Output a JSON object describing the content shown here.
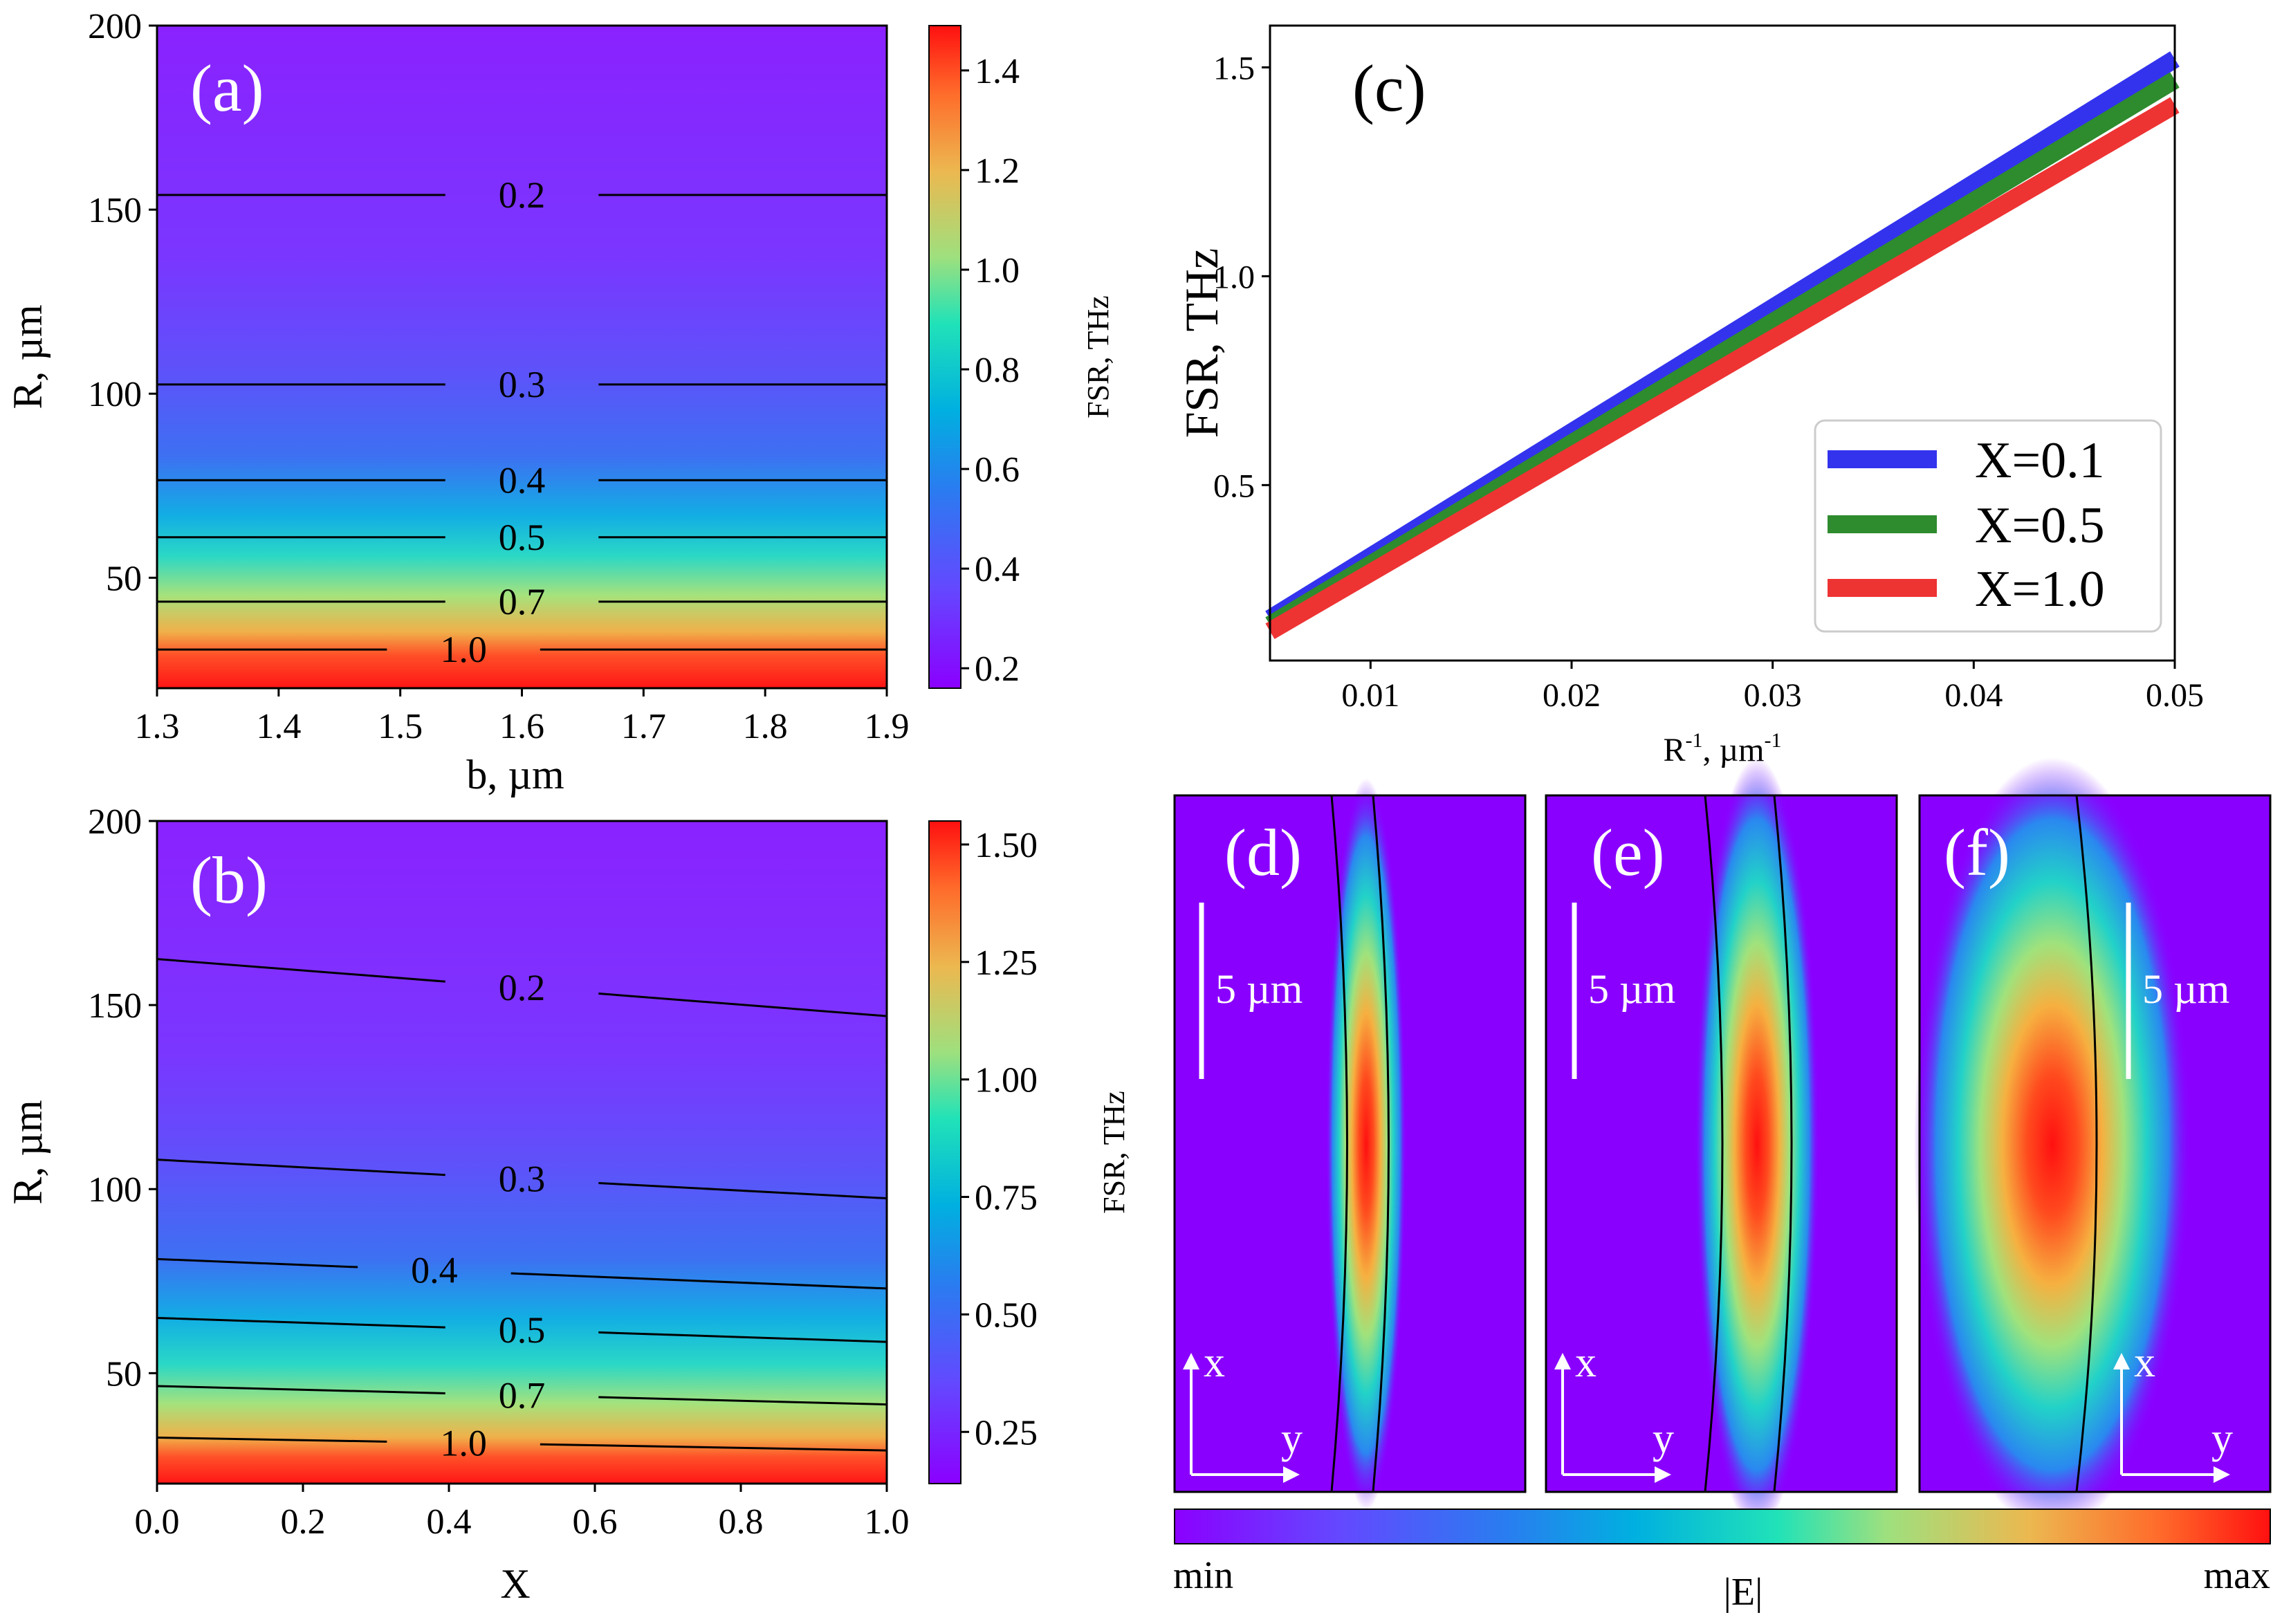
{
  "chart_data": [
    {
      "id": "a",
      "type": "heatmap",
      "panel_label": "(a)",
      "xlabel": "b, µm",
      "ylabel": "R, µm",
      "xlim": [
        1.3,
        1.9
      ],
      "ylim": [
        20,
        200
      ],
      "xticks": [
        "1.3",
        "1.4",
        "1.5",
        "1.6",
        "1.7",
        "1.8",
        "1.9"
      ],
      "yticks": [
        "50",
        "100",
        "150",
        "200"
      ],
      "colorbar": {
        "label": "FSR, THz",
        "range": [
          0.16,
          1.49
        ],
        "ticks": [
          "0.2",
          "0.4",
          "0.6",
          "0.8",
          "1.0",
          "1.2",
          "1.4"
        ]
      },
      "contours": [
        {
          "level": "0.2",
          "r_at_xmin": 154,
          "r_at_xmax": 154
        },
        {
          "level": "0.3",
          "r_at_xmin": 102.5,
          "r_at_xmax": 102.5
        },
        {
          "level": "0.4",
          "r_at_xmin": 76.5,
          "r_at_xmax": 76.5
        },
        {
          "level": "0.5",
          "r_at_xmin": 61,
          "r_at_xmax": 61
        },
        {
          "level": "0.7",
          "r_at_xmin": 43.5,
          "r_at_xmax": 43.5
        },
        {
          "level": "1.0",
          "r_at_xmin": 30.5,
          "r_at_xmax": 30.5
        }
      ]
    },
    {
      "id": "b",
      "type": "heatmap",
      "panel_label": "(b)",
      "xlabel": "X",
      "ylabel": "R, µm",
      "xlim": [
        0,
        1
      ],
      "ylim": [
        20,
        200
      ],
      "xticks": [
        "0.0",
        "0.2",
        "0.4",
        "0.6",
        "0.8",
        "1.0"
      ],
      "yticks": [
        "50",
        "100",
        "150",
        "200"
      ],
      "colorbar": {
        "label": "FSR, THz",
        "range": [
          0.14,
          1.55
        ],
        "ticks": [
          "0.25",
          "0.50",
          "0.75",
          "1.00",
          "1.25",
          "1.50"
        ]
      },
      "contours": [
        {
          "level": "0.2",
          "r_at_xmin": 162.5,
          "r_at_xmax": 147
        },
        {
          "level": "0.3",
          "r_at_xmin": 108,
          "r_at_xmax": 97.5
        },
        {
          "level": "0.4",
          "r_at_xmin": 81,
          "r_at_xmax": 73
        },
        {
          "level": "0.5",
          "r_at_xmin": 65,
          "r_at_xmax": 58.5
        },
        {
          "level": "0.7",
          "r_at_xmin": 46.5,
          "r_at_xmax": 41.5
        },
        {
          "level": "1.0",
          "r_at_xmin": 32.5,
          "r_at_xmax": 29
        }
      ]
    },
    {
      "id": "c",
      "type": "line",
      "panel_label": "(c)",
      "xlabel": "R⁻¹, µm⁻¹",
      "ylabel": "FSR, THz",
      "xlim": [
        0.005,
        0.05
      ],
      "ylim": [
        0.08,
        1.6
      ],
      "xticks": [
        "0.01",
        "0.02",
        "0.03",
        "0.04",
        "0.05"
      ],
      "yticks": [
        "0.5",
        "1.0",
        "1.5"
      ],
      "legend": "bottom-right",
      "series": [
        {
          "name": "X=0.1",
          "color": "#3333ee",
          "x": [
            0.005,
            0.05
          ],
          "y": [
            0.18,
            1.52
          ]
        },
        {
          "name": "X=0.5",
          "color": "#2e8b2e",
          "x": [
            0.005,
            0.05
          ],
          "y": [
            0.165,
            1.47
          ]
        },
        {
          "name": "X=1.0",
          "color": "#ee3333",
          "x": [
            0.005,
            0.05
          ],
          "y": [
            0.15,
            1.41
          ]
        }
      ]
    },
    {
      "id": "def",
      "type": "heatmap",
      "panels": [
        {
          "panel_label": "(d)",
          "scale_label": "5 µm",
          "axis_x": "x",
          "axis_y": "y"
        },
        {
          "panel_label": "(e)",
          "scale_label": "5 µm",
          "axis_x": "x",
          "axis_y": "y"
        },
        {
          "panel_label": "(f)",
          "scale_label": "5 µm",
          "axis_x": "x",
          "axis_y": "y"
        }
      ],
      "colorbar": {
        "label": "|E|",
        "min_label": "min",
        "max_label": "max"
      }
    }
  ]
}
